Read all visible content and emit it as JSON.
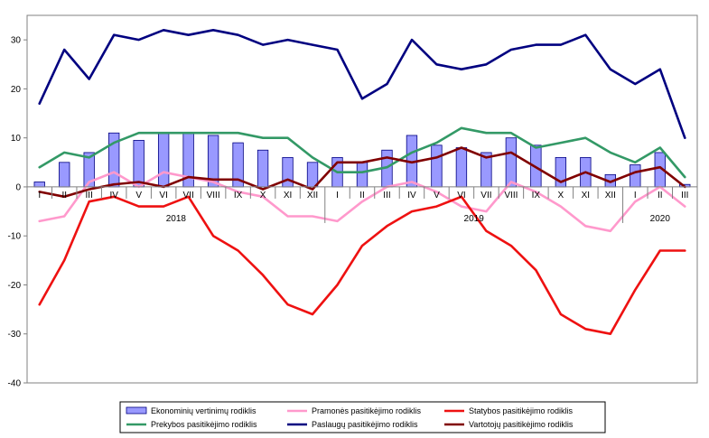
{
  "chart_data": {
    "type": "bar+line",
    "categories": [
      "I",
      "II",
      "III",
      "IV",
      "V",
      "VI",
      "VII",
      "VIII",
      "IX",
      "X",
      "XI",
      "XII",
      "I",
      "II",
      "III",
      "IV",
      "V",
      "VI",
      "VII",
      "VIII",
      "IX",
      "X",
      "XI",
      "XII",
      "I",
      "II",
      "III"
    ],
    "years": [
      {
        "label": "2018",
        "start": 0,
        "end": 11
      },
      {
        "label": "2019",
        "start": 12,
        "end": 23
      },
      {
        "label": "2020",
        "start": 24,
        "end": 26
      }
    ],
    "ylim": [
      -40,
      35
    ],
    "yticks": [
      30,
      20,
      10,
      0,
      -10,
      -20,
      -30,
      -40
    ],
    "grid": false,
    "legend_position": "bottom",
    "series": [
      {
        "name": "Ekonominių vertinimų rodiklis",
        "kind": "bar",
        "color": "#9999ff",
        "values": [
          1,
          5,
          7,
          11,
          9.5,
          11,
          11,
          10.5,
          9,
          7.5,
          6,
          5,
          6,
          5,
          7.5,
          10.5,
          8.5,
          8,
          7,
          10,
          8.5,
          6,
          6,
          2.5,
          4.5,
          7,
          0.5
        ]
      },
      {
        "name": "Pramonės pasitikėjimo rodiklis",
        "kind": "line",
        "color": "#ff99cc",
        "values": [
          -7,
          -6,
          1,
          3,
          0,
          3,
          2,
          1,
          -1,
          -2,
          -6,
          -6,
          -7,
          -3,
          0,
          1,
          -1,
          -4,
          -5,
          1,
          -1,
          -4,
          -8,
          -9,
          -3,
          0,
          -4
        ]
      },
      {
        "name": "Statybos pasitikėjimo rodiklis",
        "kind": "line",
        "color": "#ee1111",
        "values": [
          -24,
          -15,
          -3,
          -2,
          -4,
          -4,
          -2,
          -10,
          -13,
          -18,
          -24,
          -26,
          -20,
          -12,
          -8,
          -5,
          -4,
          -2,
          -9,
          -12,
          -17,
          -26,
          -29,
          -30,
          -21,
          -13,
          -13
        ]
      },
      {
        "name": "Prekybos pasitikėjimo rodiklis",
        "kind": "line",
        "color": "#339966",
        "values": [
          4,
          7,
          6,
          9,
          11,
          11,
          11,
          11,
          11,
          10,
          10,
          6,
          3,
          3,
          4,
          7,
          9,
          12,
          11,
          11,
          8,
          9,
          10,
          7,
          5,
          8,
          2
        ]
      },
      {
        "name": "Paslaugų pasitikėjimo rodiklis",
        "kind": "line",
        "color": "#000080",
        "values": [
          17,
          28,
          22,
          31,
          30,
          32,
          31,
          32,
          31,
          29,
          30,
          29,
          28,
          18,
          21,
          30,
          25,
          24,
          25,
          28,
          29,
          29,
          31,
          24,
          21,
          24,
          10
        ]
      },
      {
        "name": "Vartotojų pasitikėjimo rodiklis",
        "kind": "line",
        "color": "#800000",
        "values": [
          -1,
          -2,
          -0.5,
          0.5,
          1,
          0,
          2,
          1.5,
          1.5,
          -0.5,
          1.5,
          -0.5,
          5,
          5,
          6,
          5,
          6,
          8,
          6,
          7,
          4,
          1,
          3,
          1,
          3,
          4,
          0
        ]
      }
    ]
  }
}
